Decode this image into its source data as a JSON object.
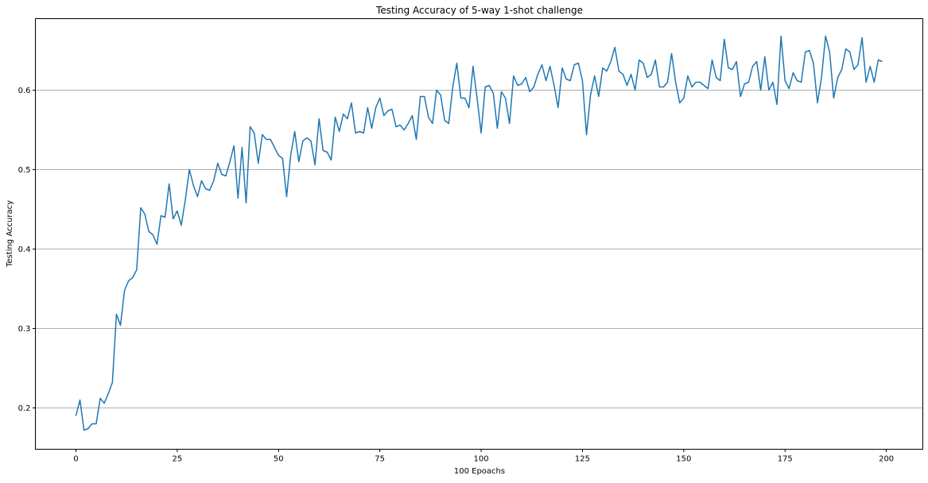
{
  "chart_data": {
    "type": "line",
    "title": "Testing Accuracy of 5-way 1-shot challenge",
    "xlabel": "100 Epoachs",
    "ylabel": "Testing Accuracy",
    "xlim": [
      -10,
      209
    ],
    "ylim": [
      0.148,
      0.69
    ],
    "xticks": [
      0,
      25,
      50,
      75,
      100,
      125,
      150,
      175,
      200
    ],
    "yticks": [
      0.2,
      0.3,
      0.4,
      0.5,
      0.6
    ],
    "grid": "y-major",
    "legend": "none",
    "line_color": "#1f77b4",
    "series": [
      {
        "x": [
          0,
          1,
          2,
          3,
          4,
          5,
          6,
          7,
          8,
          9,
          10,
          11,
          12,
          13,
          14,
          15,
          16,
          17,
          18,
          19,
          20,
          21,
          22,
          23,
          24,
          25,
          26,
          27,
          28,
          29,
          30,
          31,
          32,
          33,
          34,
          35,
          36,
          37,
          38,
          39,
          40,
          41,
          42,
          43,
          44,
          45,
          46,
          47,
          48,
          49,
          50,
          51,
          52,
          53,
          54,
          55,
          56,
          57,
          58,
          59,
          60,
          61,
          62,
          63,
          64,
          65,
          66,
          67,
          68,
          69,
          70,
          71,
          72,
          73,
          74,
          75,
          76,
          77,
          78,
          79,
          80,
          81,
          82,
          83,
          84,
          85,
          86,
          87,
          88,
          89,
          90,
          91,
          92,
          93,
          94,
          95,
          96,
          97,
          98,
          99,
          100,
          101,
          102,
          103,
          104,
          105,
          106,
          107,
          108,
          109,
          110,
          111,
          112,
          113,
          114,
          115,
          116,
          117,
          118,
          119,
          120,
          121,
          122,
          123,
          124,
          125,
          126,
          127,
          128,
          129,
          130,
          131,
          132,
          133,
          134,
          135,
          136,
          137,
          138,
          139,
          140,
          141,
          142,
          143,
          144,
          145,
          146,
          147,
          148,
          149,
          150,
          151,
          152,
          153,
          154,
          155,
          156,
          157,
          158,
          159,
          160,
          161,
          162,
          163,
          164,
          165,
          166,
          167,
          168,
          169,
          170,
          171,
          172,
          173,
          174,
          175,
          176,
          177,
          178,
          179,
          180,
          181,
          182,
          183,
          184,
          185,
          186,
          187,
          188,
          189,
          190,
          191,
          192,
          193,
          194,
          195,
          196,
          197,
          198,
          199
        ],
        "values": [
          0.19,
          0.21,
          0.172,
          0.174,
          0.18,
          0.18,
          0.212,
          0.206,
          0.218,
          0.232,
          0.318,
          0.304,
          0.348,
          0.36,
          0.364,
          0.374,
          0.452,
          0.444,
          0.422,
          0.418,
          0.406,
          0.442,
          0.44,
          0.482,
          0.438,
          0.448,
          0.43,
          0.462,
          0.5,
          0.48,
          0.466,
          0.486,
          0.476,
          0.474,
          0.486,
          0.508,
          0.494,
          0.492,
          0.51,
          0.53,
          0.464,
          0.528,
          0.458,
          0.554,
          0.546,
          0.508,
          0.544,
          0.538,
          0.538,
          0.528,
          0.518,
          0.514,
          0.466,
          0.518,
          0.548,
          0.51,
          0.536,
          0.54,
          0.536,
          0.506,
          0.564,
          0.524,
          0.522,
          0.512,
          0.566,
          0.548,
          0.57,
          0.564,
          0.584,
          0.546,
          0.548,
          0.546,
          0.578,
          0.552,
          0.578,
          0.59,
          0.568,
          0.574,
          0.576,
          0.554,
          0.556,
          0.55,
          0.558,
          0.568,
          0.538,
          0.592,
          0.592,
          0.566,
          0.558,
          0.6,
          0.594,
          0.562,
          0.558,
          0.604,
          0.634,
          0.59,
          0.59,
          0.578,
          0.63,
          0.59,
          0.546,
          0.604,
          0.606,
          0.596,
          0.552,
          0.598,
          0.59,
          0.558,
          0.618,
          0.606,
          0.608,
          0.616,
          0.598,
          0.604,
          0.62,
          0.632,
          0.612,
          0.63,
          0.606,
          0.578,
          0.628,
          0.614,
          0.612,
          0.632,
          0.634,
          0.612,
          0.544,
          0.594,
          0.618,
          0.592,
          0.628,
          0.624,
          0.636,
          0.654,
          0.624,
          0.62,
          0.606,
          0.62,
          0.6,
          0.638,
          0.634,
          0.616,
          0.62,
          0.638,
          0.604,
          0.604,
          0.61,
          0.646,
          0.61,
          0.584,
          0.59,
          0.618,
          0.604,
          0.61,
          0.61,
          0.606,
          0.602,
          0.638,
          0.616,
          0.612,
          0.664,
          0.628,
          0.626,
          0.636,
          0.592,
          0.608,
          0.61,
          0.63,
          0.636,
          0.6,
          0.642,
          0.6,
          0.61,
          0.582,
          0.668,
          0.612,
          0.602,
          0.622,
          0.612,
          0.61,
          0.648,
          0.65,
          0.634,
          0.584,
          0.616,
          0.668,
          0.648,
          0.59,
          0.616,
          0.626,
          0.652,
          0.648,
          0.626,
          0.632,
          0.666,
          0.61,
          0.63,
          0.61,
          0.638,
          0.636
        ]
      }
    ]
  }
}
